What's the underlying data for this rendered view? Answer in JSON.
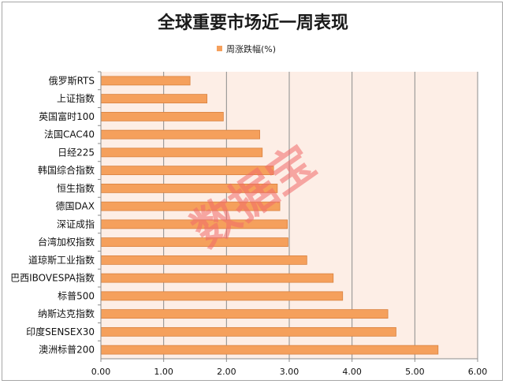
{
  "chart_data": {
    "type": "bar",
    "orientation": "horizontal",
    "title": "全球重要市场近一周表现",
    "series": [
      {
        "name": "周涨跌幅(%)",
        "color": "#f5a05c",
        "values": [
          1.42,
          1.69,
          1.95,
          2.53,
          2.57,
          2.75,
          2.81,
          2.85,
          2.97,
          2.98,
          3.28,
          3.7,
          3.85,
          4.57,
          4.7,
          5.37
        ]
      }
    ],
    "categories": [
      "俄罗斯RTS",
      "上证指数",
      "英国富时100",
      "法国CAC40",
      "日经225",
      "韩国综合指数",
      "恒生指数",
      "德国DAX",
      "深证成指",
      "台湾加权指数",
      "道琼斯工业指数",
      "巴西IBOVESPA指数",
      "标普500",
      "纳斯达克指数",
      "印度SENSEX30",
      "澳洲标普200"
    ],
    "xlim": [
      0,
      6
    ],
    "xticks": [
      "0.00",
      "1.00",
      "2.00",
      "3.00",
      "4.00",
      "5.00",
      "6.00"
    ],
    "grid": "vertical",
    "legend": "top",
    "plot_background": "#fdeee6",
    "watermark": "数据宝"
  }
}
